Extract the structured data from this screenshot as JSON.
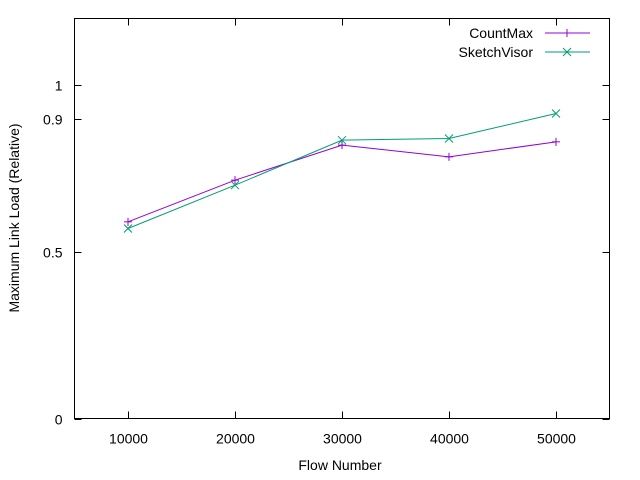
{
  "chart_data": {
    "type": "line",
    "xlabel": "Flow Number",
    "ylabel": "Maximum Link Load (Relative)",
    "x": [
      10000,
      20000,
      30000,
      40000,
      50000
    ],
    "xlim": [
      5000,
      55000
    ],
    "ylim": [
      0,
      1.2
    ],
    "xticks": [
      "10000",
      "20000",
      "30000",
      "40000",
      "50000"
    ],
    "yticks": [
      {
        "value": 0,
        "label": "0"
      },
      {
        "value": 0.5,
        "label": "0.5"
      },
      {
        "value": 0.9,
        "label": "0.9"
      },
      {
        "value": 1,
        "label": "1"
      }
    ],
    "grid": false,
    "legend_position": "top-right",
    "series": [
      {
        "name": "CountMax",
        "values": [
          0.59,
          0.715,
          0.82,
          0.785,
          0.83
        ],
        "color": "#9400d3",
        "marker": "plus"
      },
      {
        "name": "SketchVisor",
        "values": [
          0.57,
          0.7,
          0.835,
          0.84,
          0.915
        ],
        "color": "#009e73",
        "marker": "cross"
      }
    ]
  }
}
